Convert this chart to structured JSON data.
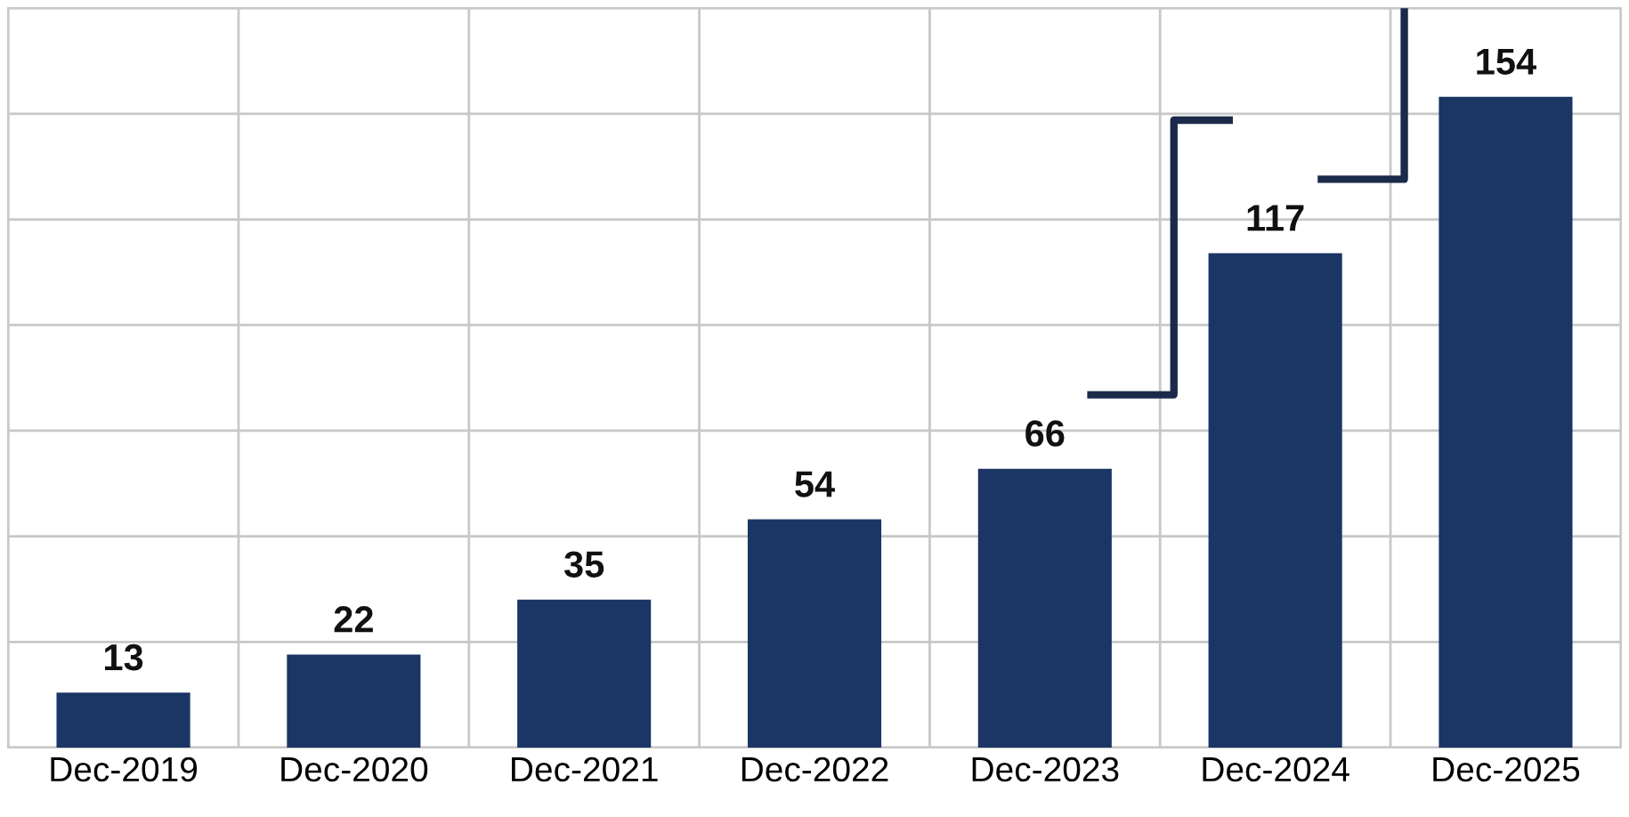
{
  "chart_data": {
    "type": "bar",
    "categories": [
      "Dec-2019",
      "Dec-2020",
      "Dec-2021",
      "Dec-2022",
      "Dec-2023",
      "Dec-2024",
      "Dec-2025"
    ],
    "values": [
      13,
      22,
      35,
      54,
      66,
      117,
      154
    ],
    "color": "#1b3564",
    "data_labels": true,
    "ylim": [
      0,
      175
    ],
    "yticks": [
      {
        "value": 0,
        "label": null
      },
      {
        "value": 25,
        "label": null
      },
      {
        "value": 50,
        "label": null
      },
      {
        "value": 75,
        "label": null
      },
      {
        "value": 100,
        "label": null
      },
      {
        "value": 125,
        "label": null
      },
      {
        "value": 150,
        "label": null
      },
      {
        "value": 175,
        "label": null
      }
    ],
    "tick_labels": "x",
    "grid": true
  }
}
